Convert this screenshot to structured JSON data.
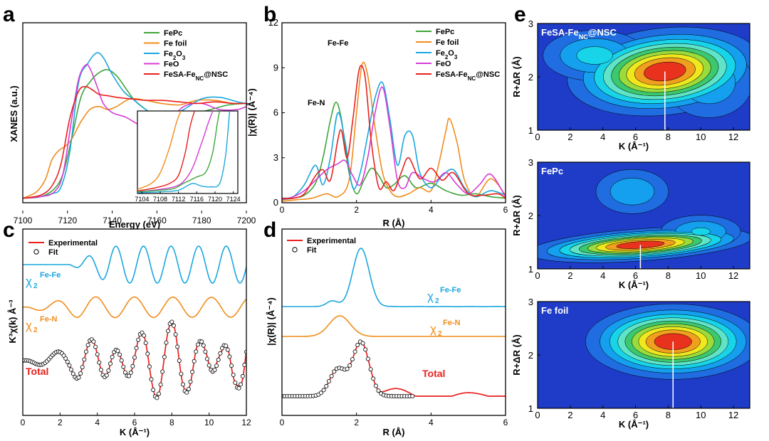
{
  "figure": {
    "panel_labels": [
      "a",
      "b",
      "c",
      "d",
      "e"
    ]
  },
  "colors": {
    "FePc": "#3ea43a",
    "Fe foil": "#f08c1c",
    "Fe2O3": "#1aa7de",
    "FeO": "#d63bd6",
    "FeSA": "#e8201e",
    "fit": "#000000"
  },
  "chart_data": [
    {
      "id": "a",
      "type": "line",
      "xlabel": "Energy (eV)",
      "ylabel": "XANES (a.u.)",
      "xlim": [
        7100,
        7200
      ],
      "xticks": [
        "7100",
        "7120",
        "7140",
        "7160",
        "7180",
        "7200"
      ],
      "legend": [
        "FePc",
        "Fe foil",
        "Fe₂O₃",
        "FeO",
        "FeSA-Feₙᴄ@NSC"
      ],
      "legend_text": {
        "pre": "FeSA-Fe",
        "sub": "NC",
        "post": "@NSC"
      },
      "series": [
        {
          "name": "FePc",
          "x": [
            7100,
            7108,
            7114,
            7118,
            7122,
            7126,
            7130,
            7134,
            7138,
            7142,
            7146,
            7150,
            7155,
            7160,
            7168,
            7176,
            7184,
            7192,
            7200
          ],
          "y": [
            0.02,
            0.03,
            0.08,
            0.18,
            0.42,
            0.68,
            0.78,
            0.84,
            0.86,
            0.82,
            0.74,
            0.66,
            0.6,
            0.56,
            0.54,
            0.57,
            0.6,
            0.63,
            0.64
          ]
        },
        {
          "name": "Fe foil",
          "x": [
            7100,
            7106,
            7110,
            7113,
            7116,
            7119,
            7122,
            7126,
            7130,
            7134,
            7138,
            7142,
            7148,
            7155,
            7162,
            7170,
            7178,
            7186,
            7194,
            7200
          ],
          "y": [
            0.02,
            0.06,
            0.14,
            0.27,
            0.33,
            0.36,
            0.41,
            0.52,
            0.6,
            0.62,
            0.6,
            0.62,
            0.67,
            0.66,
            0.64,
            0.63,
            0.66,
            0.66,
            0.64,
            0.64
          ]
        },
        {
          "name": "Fe2O3",
          "x": [
            7100,
            7108,
            7113,
            7117,
            7121,
            7125,
            7129,
            7133,
            7136,
            7140,
            7145,
            7150,
            7155,
            7160,
            7165,
            7172,
            7180,
            7188,
            7196,
            7200
          ],
          "y": [
            0.02,
            0.03,
            0.05,
            0.09,
            0.32,
            0.78,
            0.9,
            0.97,
            0.94,
            0.83,
            0.72,
            0.66,
            0.6,
            0.56,
            0.55,
            0.6,
            0.67,
            0.68,
            0.65,
            0.64
          ]
        },
        {
          "name": "FeO",
          "x": [
            7100,
            7108,
            7114,
            7118,
            7122,
            7125,
            7128,
            7130,
            7133,
            7136,
            7140,
            7146,
            7152,
            7158,
            7165,
            7172,
            7180,
            7188,
            7196,
            7200
          ],
          "y": [
            0.02,
            0.03,
            0.06,
            0.18,
            0.55,
            0.8,
            0.89,
            0.87,
            0.76,
            0.64,
            0.58,
            0.55,
            0.5,
            0.47,
            0.52,
            0.62,
            0.64,
            0.6,
            0.6,
            0.62
          ]
        },
        {
          "name": "FeSA-FeNC@NSC",
          "x": [
            7100,
            7108,
            7113,
            7117,
            7121,
            7125,
            7128,
            7131,
            7134,
            7138,
            7142,
            7148,
            7155,
            7162,
            7170,
            7178,
            7186,
            7194,
            7200
          ],
          "y": [
            0.02,
            0.04,
            0.1,
            0.24,
            0.54,
            0.72,
            0.75,
            0.73,
            0.7,
            0.69,
            0.68,
            0.67,
            0.66,
            0.66,
            0.65,
            0.64,
            0.65,
            0.64,
            0.64
          ]
        }
      ],
      "inset": {
        "xlim": [
          7103,
          7125
        ],
        "xticks": [
          "7104",
          "7108",
          "7112",
          "7116",
          "7120",
          "7124"
        ]
      }
    },
    {
      "id": "b",
      "type": "line",
      "xlabel": "R (Å)",
      "ylabel": "|χ(R)| (Å⁻⁴)",
      "xlim": [
        0,
        6
      ],
      "ylim": [
        0,
        12
      ],
      "xticks": [
        "0",
        "2",
        "4",
        "6"
      ],
      "yticks": [
        "0",
        "3",
        "6",
        "9",
        "12"
      ],
      "legend": [
        "FePc",
        "Fe foil",
        "Fe₂O₃",
        "FeO",
        "FeSA-Feₙᴄ@NSC"
      ],
      "annotations": [
        "Fe-Fe",
        "Fe-N"
      ],
      "series": [
        {
          "name": "FePc",
          "x": [
            0,
            0.3,
            0.6,
            0.9,
            1.1,
            1.3,
            1.45,
            1.6,
            1.8,
            2.0,
            2.2,
            2.4,
            2.6,
            2.8,
            3.0,
            3.3,
            3.6,
            4.0,
            4.4,
            4.8,
            5.2,
            5.6,
            6.0
          ],
          "y": [
            0.2,
            0.3,
            0.5,
            1.3,
            3.0,
            5.5,
            6.7,
            5.5,
            2.0,
            0.6,
            1.5,
            2.3,
            1.8,
            1.0,
            1.2,
            1.8,
            1.0,
            1.3,
            0.8,
            0.5,
            0.6,
            0.4,
            0.3
          ]
        },
        {
          "name": "Fe foil",
          "x": [
            0,
            0.4,
            0.8,
            1.2,
            1.5,
            1.8,
            2.0,
            2.15,
            2.3,
            2.5,
            2.7,
            2.9,
            3.1,
            3.4,
            3.7,
            4.0,
            4.2,
            4.4,
            4.5,
            4.7,
            4.9,
            5.2,
            5.6,
            6.0
          ],
          "y": [
            0.1,
            0.2,
            0.3,
            0.6,
            0.4,
            1.5,
            6.0,
            9.2,
            8.5,
            5.0,
            2.0,
            0.8,
            0.4,
            0.6,
            1.0,
            0.8,
            2.5,
            4.8,
            5.6,
            4.0,
            1.5,
            0.4,
            1.6,
            0.5
          ]
        },
        {
          "name": "Fe2O3",
          "x": [
            0,
            0.3,
            0.6,
            0.9,
            1.1,
            1.3,
            1.5,
            1.7,
            1.9,
            2.1,
            2.3,
            2.5,
            2.7,
            2.9,
            3.1,
            3.3,
            3.5,
            3.7,
            4.0,
            4.3,
            4.6,
            4.9,
            5.2,
            5.6,
            6.0
          ],
          "y": [
            0.3,
            0.4,
            1.2,
            2.5,
            1.2,
            3.0,
            6.0,
            4.0,
            1.0,
            2.0,
            4.5,
            7.0,
            8.0,
            5.5,
            2.5,
            4.5,
            4.5,
            2.0,
            1.0,
            1.8,
            2.2,
            1.0,
            0.4,
            0.8,
            0.5
          ]
        },
        {
          "name": "FeO",
          "x": [
            0,
            0.3,
            0.6,
            0.9,
            1.2,
            1.5,
            1.7,
            1.9,
            2.1,
            2.3,
            2.5,
            2.7,
            2.9,
            3.1,
            3.3,
            3.5,
            3.8,
            4.1,
            4.4,
            4.7,
            5.0,
            5.3,
            5.6,
            6.0
          ],
          "y": [
            0.2,
            0.4,
            0.8,
            1.5,
            2.2,
            2.6,
            2.8,
            1.8,
            1.2,
            3.0,
            6.0,
            7.7,
            5.0,
            1.5,
            1.0,
            2.0,
            1.6,
            1.4,
            2.0,
            1.2,
            0.6,
            1.2,
            1.9,
            0.4
          ]
        },
        {
          "name": "FeSA-FeNC@NSC",
          "x": [
            0,
            0.3,
            0.6,
            0.9,
            1.1,
            1.3,
            1.5,
            1.6,
            1.75,
            1.9,
            2.05,
            2.15,
            2.25,
            2.4,
            2.6,
            2.8,
            3.0,
            3.2,
            3.4,
            3.7,
            4.0,
            4.3,
            4.6,
            5.0,
            5.4,
            5.8,
            6.0
          ],
          "y": [
            0.3,
            0.3,
            0.6,
            1.8,
            2.2,
            1.5,
            4.2,
            4.8,
            3.0,
            5.5,
            8.6,
            9.1,
            8.0,
            4.0,
            1.0,
            1.4,
            0.8,
            2.0,
            3.0,
            1.6,
            2.3,
            1.5,
            2.0,
            0.6,
            0.5,
            0.6,
            0.3
          ]
        }
      ]
    },
    {
      "id": "c",
      "type": "line",
      "xlabel": "K (Å⁻¹)",
      "ylabel": "K³χ(k) Å⁻³",
      "xlim": [
        0,
        12
      ],
      "xticks": [
        "0",
        "2",
        "4",
        "6",
        "8",
        "10",
        "12"
      ],
      "legend": [
        "Experimental",
        "Fit"
      ],
      "labels": {
        "fefe_base": "χ",
        "fefe_sub": "2",
        "fefe_sup": "Fe-Fe",
        "fen_base": "χ",
        "fen_sub": "2",
        "fen_sup": "Fe-N",
        "total": "Total"
      }
    },
    {
      "id": "d",
      "type": "line",
      "xlabel": "R (Å)",
      "ylabel": "|χ(R)| (Å⁻⁴)",
      "xlim": [
        0,
        6
      ],
      "xticks": [
        "0",
        "2",
        "4",
        "6"
      ],
      "legend": [
        "Experimental",
        "Fit"
      ],
      "labels": {
        "fefe_base": "χ",
        "fefe_sub": "2",
        "fefe_sup": "Fe-Fe",
        "fen_base": "χ",
        "fen_sub": "2",
        "fen_sup": "Fe-N",
        "total": "Total"
      }
    },
    {
      "id": "e",
      "type": "heatmap",
      "xlabel": "K (Å⁻¹)",
      "ylabel": "R+ΔR (Å)",
      "xlim": [
        0,
        13
      ],
      "ylim": [
        1,
        3
      ],
      "xticks": [
        "0",
        "2",
        "4",
        "6",
        "8",
        "10",
        "12"
      ],
      "yticks": [
        "1",
        "2",
        "3"
      ],
      "maps": [
        {
          "title_pre": "FeSA-Fe",
          "title_sub": "NC",
          "title_post": "@NSC",
          "peak_k": 7.8,
          "peak_r": 2.1
        },
        {
          "title": "FePc",
          "peak_k": 6.3,
          "peak_r": 1.45
        },
        {
          "title": "Fe foil",
          "peak_k": 8.3,
          "peak_r": 2.25
        }
      ]
    }
  ]
}
